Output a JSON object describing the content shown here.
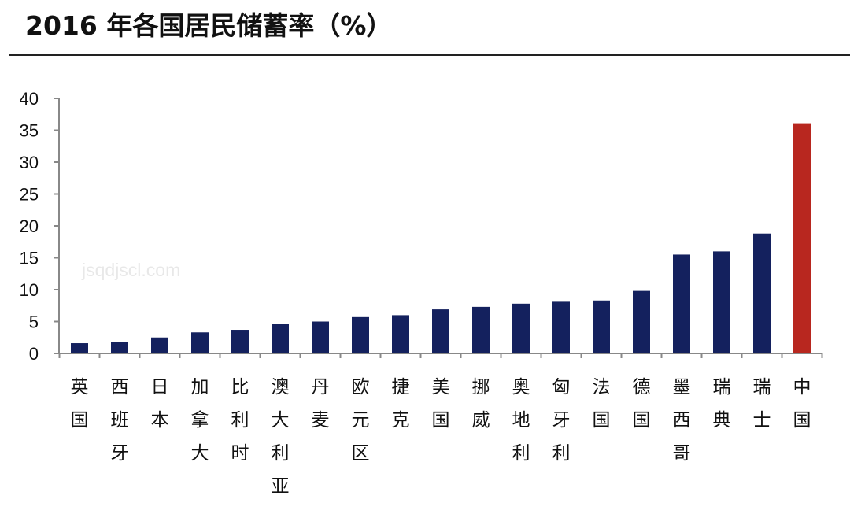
{
  "title": "2016 年各国居民储蓄率（%）",
  "watermark": "jsqdjscl.com",
  "chart_data": {
    "type": "bar",
    "title": "2016 年各国居民储蓄率（%）",
    "xlabel": "",
    "ylabel": "",
    "ylim": [
      0,
      40
    ],
    "yticks": [
      0,
      5,
      10,
      15,
      20,
      25,
      30,
      35,
      40
    ],
    "grid": false,
    "legend": "none",
    "colors": {
      "default": "#14215e",
      "highlight": "#b8271f"
    },
    "categories": [
      "英国",
      "西班牙",
      "日本",
      "加拿大",
      "比利时",
      "澳大利亚",
      "丹麦",
      "欧元区",
      "捷克",
      "美国",
      "挪威",
      "奥地利",
      "匈牙利",
      "法国",
      "德国",
      "墨西哥",
      "瑞典",
      "瑞士",
      "中国"
    ],
    "values": [
      1.6,
      1.8,
      2.5,
      3.3,
      3.7,
      4.6,
      5.0,
      5.7,
      6.0,
      6.9,
      7.3,
      7.8,
      8.1,
      8.3,
      9.8,
      15.5,
      16.0,
      18.8,
      36.1
    ],
    "highlight_category": "中国"
  }
}
